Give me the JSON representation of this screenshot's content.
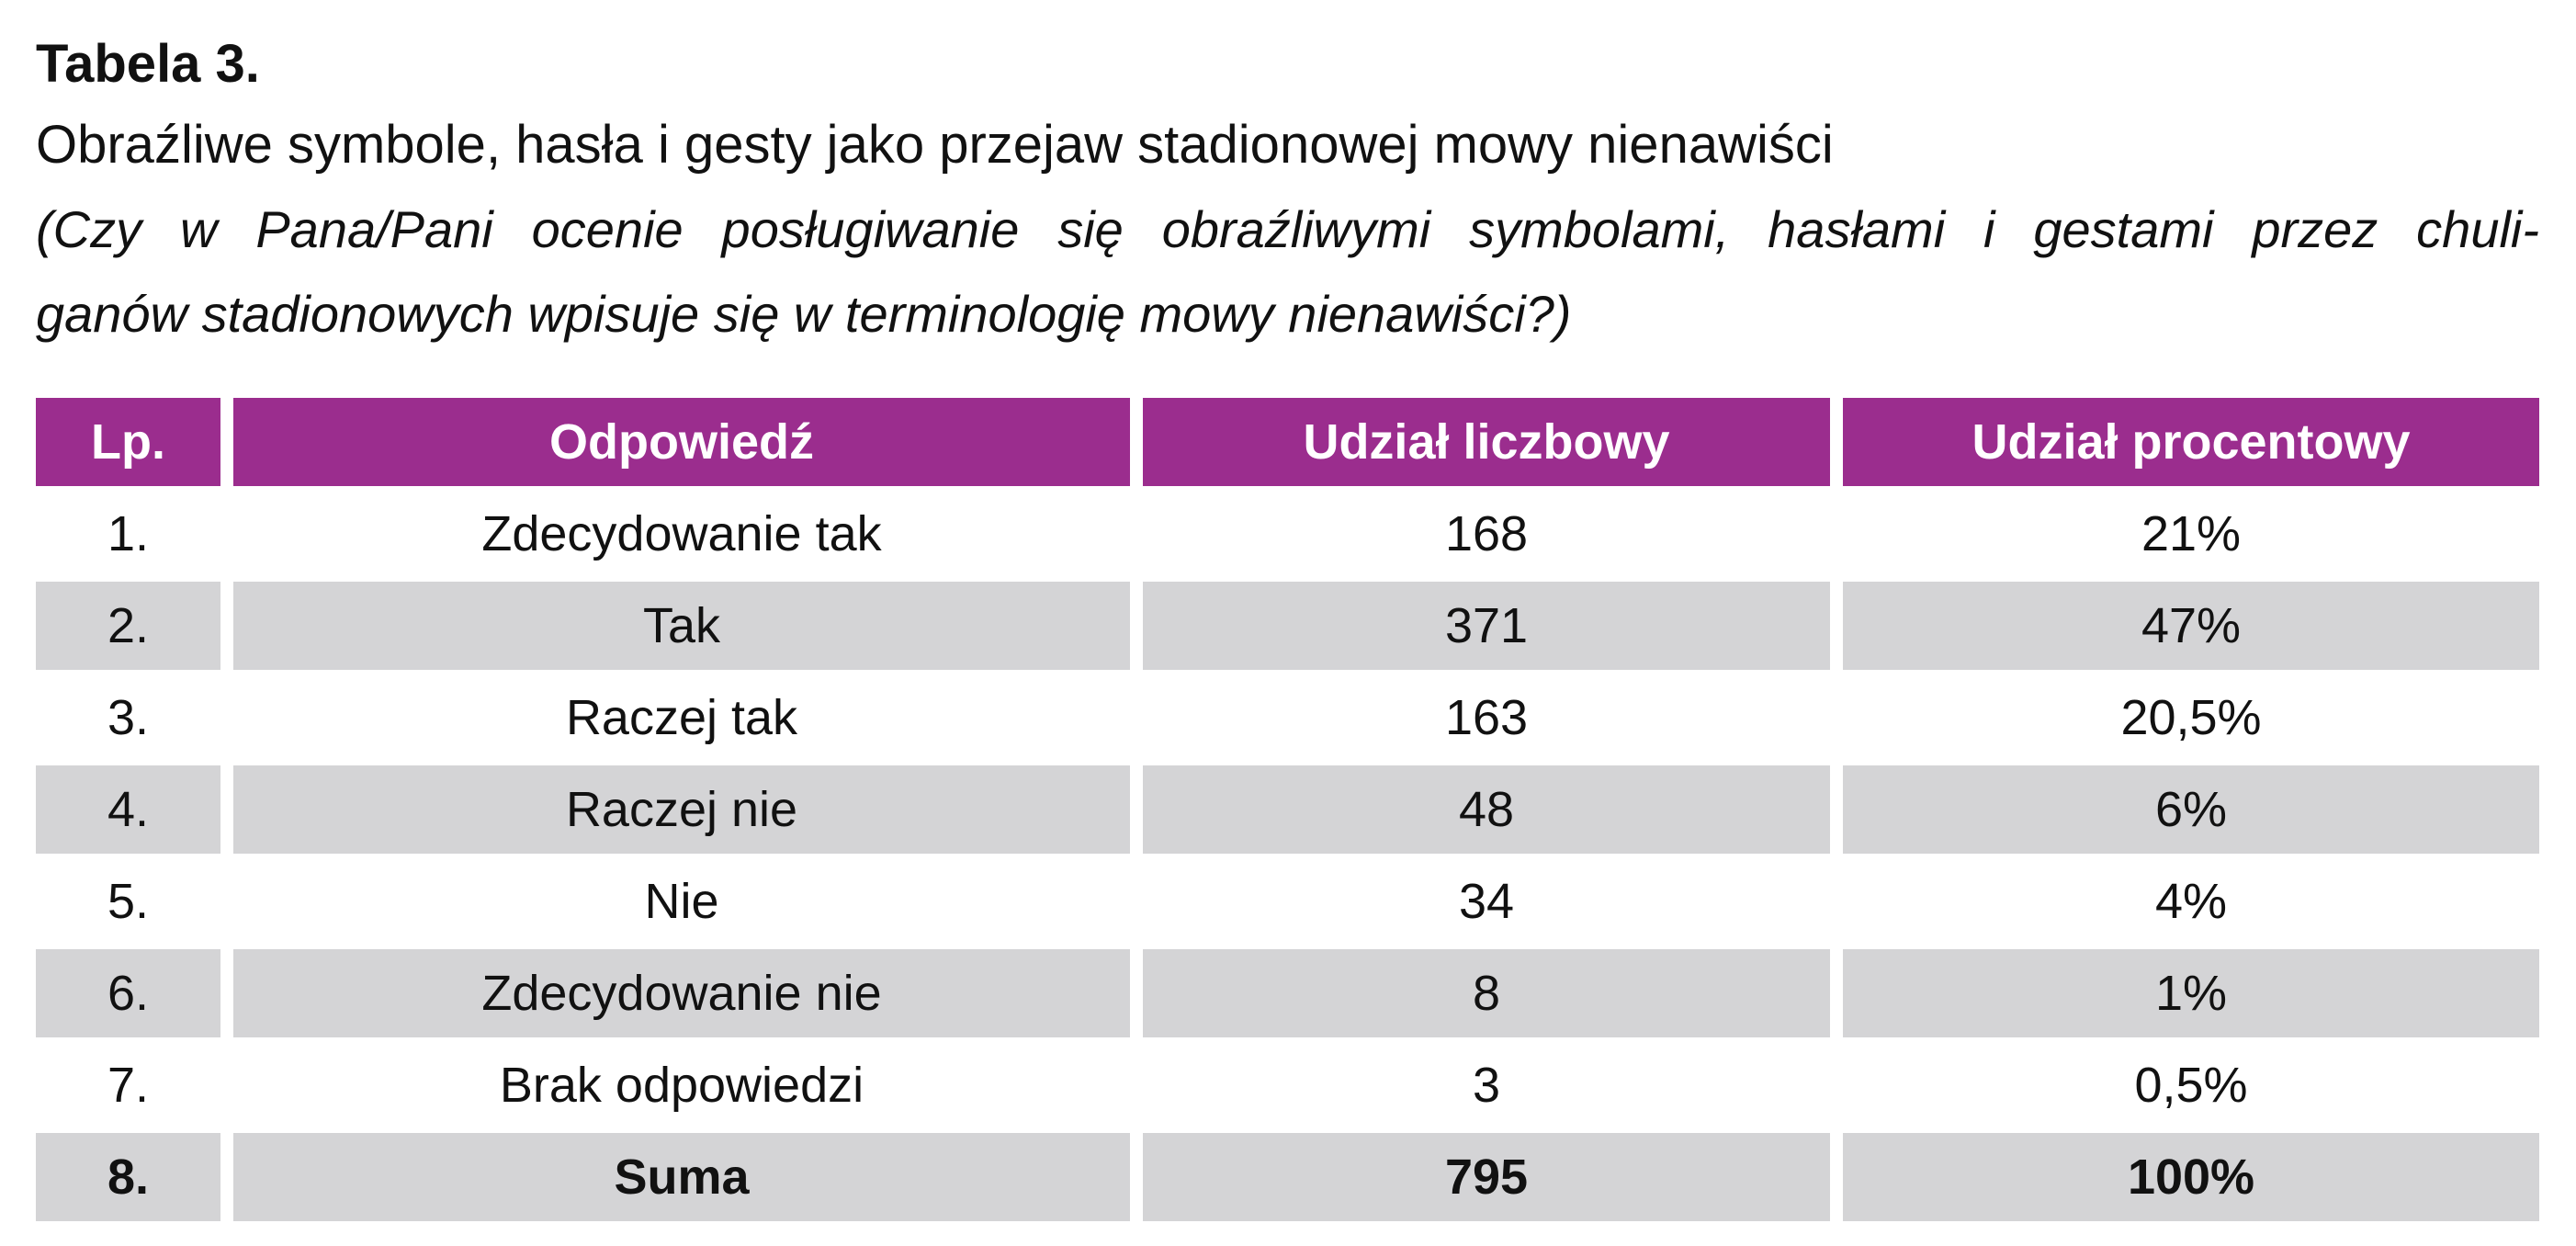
{
  "title": "Tabela 3.",
  "subtitle": "Obraźliwe symbole, hasła i gesty jako przejaw stadionowej mowy nienawiści",
  "question": [
    "(Czy w Pana/Pani ocenie posługiwanie się obraźliwymi symbolami, hasłami i gestami przez chuli-",
    "ganów stadionowych wpisuje się w terminologię mowy nienawiści?)"
  ],
  "table": {
    "header": [
      "Lp.",
      "Odpowiedź",
      "Udział liczbowy",
      "Udział procentowy"
    ],
    "rows": [
      [
        "1.",
        "Zdecydowanie tak",
        "168",
        "21%"
      ],
      [
        "2.",
        "Tak",
        "371",
        "47%"
      ],
      [
        "3.",
        "Raczej tak",
        "163",
        "20,5%"
      ],
      [
        "4.",
        "Raczej nie",
        "48",
        "6%"
      ],
      [
        "5.",
        "Nie",
        "34",
        "4%"
      ],
      [
        "6.",
        "Zdecydowanie nie",
        "8",
        "1%"
      ],
      [
        "7.",
        "Brak odpowiedzi",
        "3",
        "0,5%"
      ],
      [
        "8.",
        "Suma",
        "795",
        "100%"
      ]
    ]
  }
}
